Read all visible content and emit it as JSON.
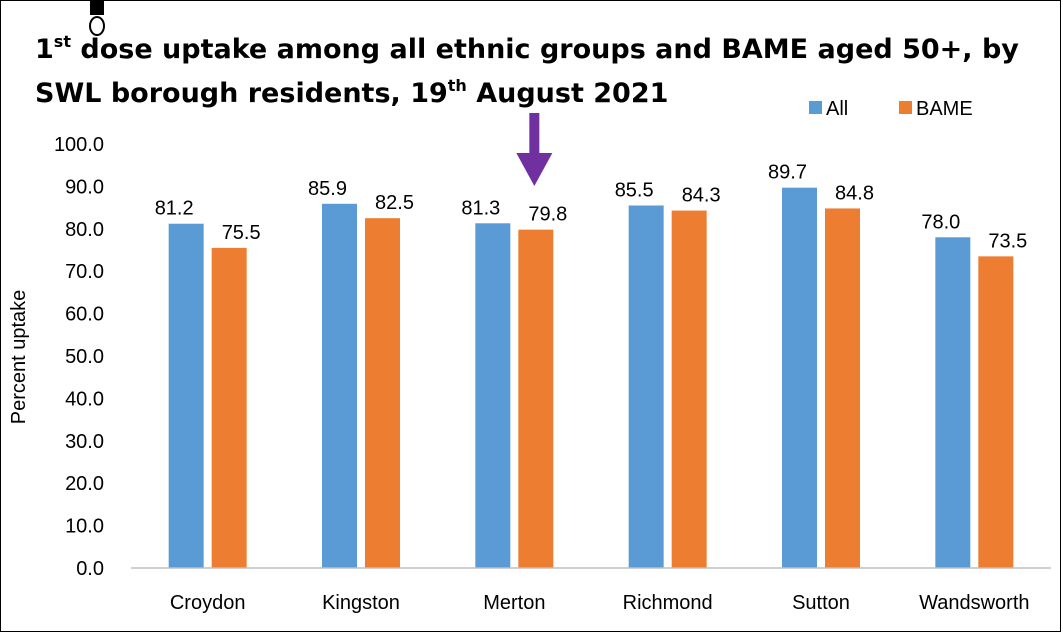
{
  "chart_data": {
    "type": "bar",
    "title": {
      "line1": {
        "pre": "1",
        "sup": "st",
        "post": " dose uptake among all ethnic groups and BAME aged 50+, by"
      },
      "line2": {
        "pre": "SWL borough residents, 19",
        "sup": "th",
        "post": " August 2021"
      }
    },
    "xlabel": "",
    "ylabel": "Percent uptake",
    "ylim": [
      0,
      100
    ],
    "yticks": [
      "0.0",
      "10.0",
      "20.0",
      "30.0",
      "40.0",
      "50.0",
      "60.0",
      "70.0",
      "80.0",
      "90.0",
      "100.0"
    ],
    "grid": false,
    "legend_position": "top-right",
    "categories": [
      "Croydon",
      "Kingston",
      "Merton",
      "Richmond",
      "Sutton",
      "Wandsworth"
    ],
    "series": [
      {
        "name": "All",
        "color": "#5B9BD5",
        "values": [
          81.2,
          85.9,
          81.3,
          85.5,
          89.7,
          78.0
        ],
        "labels": [
          "81.2",
          "85.9",
          "81.3",
          "85.5",
          "89.7",
          "78.0"
        ]
      },
      {
        "name": "BAME",
        "color": "#ED7D31",
        "values": [
          75.5,
          82.5,
          79.8,
          84.3,
          84.8,
          73.5
        ],
        "labels": [
          "75.5",
          "82.5",
          "79.8",
          "84.3",
          "84.8",
          "73.5"
        ]
      }
    ],
    "annotation": {
      "type": "arrow",
      "target_category": "Merton",
      "color": "#7030A0"
    }
  }
}
